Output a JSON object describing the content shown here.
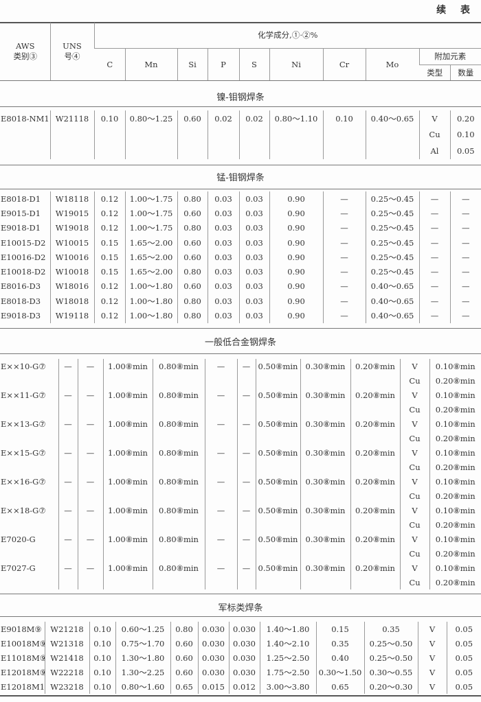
{
  "continued_label": "续 表",
  "header": {
    "aws": "AWS",
    "aws_sub": "类别③",
    "uns": "UNS",
    "uns_sub": "号④",
    "chem": "化学成分,①·②%",
    "cols": [
      "C",
      "Mn",
      "Si",
      "P",
      "S",
      "Ni",
      "Cr",
      "Mo"
    ],
    "extra": "附加元素",
    "extra_type": "类型",
    "extra_qty": "数量"
  },
  "sections": [
    {
      "title": "镍-钼钢焊条",
      "rows": [
        [
          "E8018-NM1",
          "W21118",
          "0.10",
          "0.80～1.25",
          "0.60",
          "0.02",
          "0.02",
          "0.80～1.10",
          "0.10",
          "0.40～0.65",
          "V",
          "0.20"
        ],
        [
          "",
          "",
          "",
          "",
          "",
          "",
          "",
          "",
          "",
          "",
          "Cu",
          "0.10"
        ],
        [
          "",
          "",
          "",
          "",
          "",
          "",
          "",
          "",
          "",
          "",
          "Al",
          "0.05"
        ]
      ]
    },
    {
      "title": "锰-钼钢焊条",
      "rows": [
        [
          "E8018-D1",
          "W18118",
          "0.12",
          "1.00～1.75",
          "0.80",
          "0.03",
          "0.03",
          "0.90",
          "—",
          "0.25～0.45",
          "—",
          "—"
        ],
        [
          "E9015-D1",
          "W19015",
          "0.12",
          "1.00～1.75",
          "0.60",
          "0.03",
          "0.03",
          "0.90",
          "—",
          "0.25～0.45",
          "—",
          "—"
        ],
        [
          "E9018-D1",
          "W19018",
          "0.12",
          "1.00～1.75",
          "0.80",
          "0.03",
          "0.03",
          "0.90",
          "—",
          "0.25～0.45",
          "—",
          "—"
        ],
        [
          "E10015-D2",
          "W10015",
          "0.15",
          "1.65～2.00",
          "0.60",
          "0.03",
          "0.03",
          "0.90",
          "—",
          "0.25～0.45",
          "—",
          "—"
        ],
        [
          "E10016-D2",
          "W10016",
          "0.15",
          "1.65～2.00",
          "0.60",
          "0.03",
          "0.03",
          "0.90",
          "—",
          "0.25～0.45",
          "—",
          "—"
        ],
        [
          "E10018-D2",
          "W10018",
          "0.15",
          "1.65～2.00",
          "0.80",
          "0.03",
          "0.03",
          "0.90",
          "—",
          "0.25～0.45",
          "—",
          "—"
        ],
        [
          "E8016-D3",
          "W18016",
          "0.12",
          "1.00～1.80",
          "0.60",
          "0.03",
          "0.03",
          "0.90",
          "—",
          "0.40～0.65",
          "—",
          "—"
        ],
        [
          "E8018-D3",
          "W18018",
          "0.12",
          "1.00～1.80",
          "0.80",
          "0.03",
          "0.03",
          "0.90",
          "—",
          "0.40～0.65",
          "—",
          "—"
        ],
        [
          "E9018-D3",
          "W19118",
          "0.12",
          "1.00～1.80",
          "0.80",
          "0.03",
          "0.03",
          "0.90",
          "—",
          "0.40～0.65",
          "—",
          "—"
        ]
      ]
    },
    {
      "title": "一般低合金钢焊条",
      "rows": [
        [
          "E××10-G⑦",
          "—",
          "—",
          "1.00⑧min",
          "0.80⑧min",
          "—",
          "—",
          "0.50⑧min",
          "0.30⑧min",
          "0.20⑧min",
          "V",
          "0.10⑧min"
        ],
        [
          "",
          "",
          "",
          "",
          "",
          "",
          "",
          "",
          "",
          "",
          "Cu",
          "0.20⑧min"
        ],
        [
          "E××11-G⑦",
          "—",
          "—",
          "1.00⑧min",
          "0.80⑧min",
          "—",
          "—",
          "0.50⑧min",
          "0.30⑧min",
          "0.20⑧min",
          "V",
          "0.10⑧min"
        ],
        [
          "",
          "",
          "",
          "",
          "",
          "",
          "",
          "",
          "",
          "",
          "Cu",
          "0.20⑧min"
        ],
        [
          "E××13-G⑦",
          "—",
          "—",
          "1.00⑧min",
          "0.80⑧min",
          "—",
          "—",
          "0.50⑧min",
          "0.30⑧min",
          "0.20⑧min",
          "V",
          "0.10⑧min"
        ],
        [
          "",
          "",
          "",
          "",
          "",
          "",
          "",
          "",
          "",
          "",
          "Cu",
          "0.20⑧min"
        ],
        [
          "E××15-G⑦",
          "—",
          "—",
          "1.00⑧min",
          "0.80⑧min",
          "—",
          "—",
          "0.50⑧min",
          "0.30⑧min",
          "0.20⑧min",
          "V",
          "0.10⑧min"
        ],
        [
          "",
          "",
          "",
          "",
          "",
          "",
          "",
          "",
          "",
          "",
          "Cu",
          "0.20⑧min"
        ],
        [
          "E××16-G⑦",
          "—",
          "—",
          "1.00⑧min",
          "0.80⑧min",
          "—",
          "—",
          "0.50⑧min",
          "0.30⑧min",
          "0.20⑧min",
          "V",
          "0.10⑧min"
        ],
        [
          "",
          "",
          "",
          "",
          "",
          "",
          "",
          "",
          "",
          "",
          "Cu",
          "0.20⑧min"
        ],
        [
          "E××18-G⑦",
          "—",
          "—",
          "1.00⑧min",
          "0.80⑧min",
          "—",
          "—",
          "0.50⑧min",
          "0.30⑧min",
          "0.20⑧min",
          "V",
          "0.10⑧min"
        ],
        [
          "",
          "",
          "",
          "",
          "",
          "",
          "",
          "",
          "",
          "",
          "Cu",
          "0.20⑧min"
        ],
        [
          "E7020-G",
          "—",
          "—",
          "1.00⑧min",
          "0.80⑧min",
          "—",
          "—",
          "0.50⑧min",
          "0.30⑧min",
          "0.20⑧min",
          "V",
          "0.10⑧min"
        ],
        [
          "",
          "",
          "",
          "",
          "",
          "",
          "",
          "",
          "",
          "",
          "Cu",
          "0.20⑧min"
        ],
        [
          "E7027-G",
          "—",
          "—",
          "1.00⑧min",
          "0.80⑧min",
          "—",
          "—",
          "0.50⑧min",
          "0.30⑧min",
          "0.20⑧min",
          "V",
          "0.10⑧min"
        ],
        [
          "",
          "",
          "",
          "",
          "",
          "",
          "",
          "",
          "",
          "",
          "Cu",
          "0.20⑧min"
        ]
      ]
    },
    {
      "title": "军标类焊条",
      "rows": [
        [
          "E9018M⑨",
          "W21218",
          "0.10",
          "0.60～1.25",
          "0.80",
          "0.030",
          "0.030",
          "1.40～1.80",
          "0.15",
          "0.35",
          "V",
          "0.05"
        ],
        [
          "E10018M⑨",
          "W21318",
          "0.10",
          "0.75～1.70",
          "0.60",
          "0.030",
          "0.030",
          "1.40～2.10",
          "0.35",
          "0.25～0.50",
          "V",
          "0.05"
        ],
        [
          "E11018M⑨",
          "W21418",
          "0.10",
          "1.30～1.80",
          "0.60",
          "0.030",
          "0.030",
          "1.25～2.50",
          "0.40",
          "0.25～0.50",
          "V",
          "0.05"
        ],
        [
          "E12018M⑨",
          "W22218",
          "0.10",
          "1.30～2.25",
          "0.60",
          "0.030",
          "0.030",
          "1.75～2.50",
          "0.30～1.50",
          "0.30～0.55",
          "V",
          "0.05"
        ],
        [
          "E12018M1⑨",
          "W23218",
          "0.10",
          "0.80～1.60",
          "0.65",
          "0.015",
          "0.012",
          "3.00～3.80",
          "0.65",
          "0.20～0.30",
          "V",
          "0.05"
        ]
      ]
    }
  ]
}
